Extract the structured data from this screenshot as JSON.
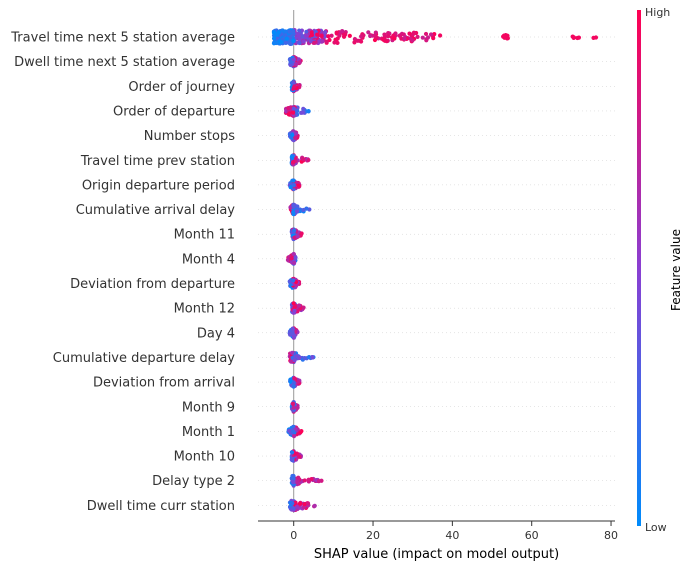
{
  "chart_data": {
    "type": "scatter",
    "title": "",
    "xlabel": "SHAP value (impact on model output)",
    "ylabel": "",
    "xlim": [
      -9,
      81
    ],
    "xticks": [
      0,
      20,
      40,
      60,
      80
    ],
    "grid": false,
    "color_scale": {
      "title": "Feature value",
      "high_label": "High",
      "low_label": "Low",
      "low_color": "#008bfb",
      "high_color": "#ff0052"
    },
    "features": [
      {
        "name": "Travel time next 5 station average",
        "x_min": -5,
        "x_max": 77,
        "low_side": "negative"
      },
      {
        "name": "Dwell time next 5 station average",
        "x_min": -1,
        "x_max": 2,
        "low_side": "negative"
      },
      {
        "name": "Order of journey",
        "x_min": -0.5,
        "x_max": 1.5,
        "low_side": "negative"
      },
      {
        "name": "Order of departure",
        "x_min": -2,
        "x_max": 4,
        "low_side": "positive"
      },
      {
        "name": "Number stops",
        "x_min": -1,
        "x_max": 1,
        "low_side": "negative"
      },
      {
        "name": "Travel time prev station",
        "x_min": -0.5,
        "x_max": 4,
        "low_side": "negative"
      },
      {
        "name": "Origin departure period",
        "x_min": -1,
        "x_max": 1.5,
        "low_side": "negative"
      },
      {
        "name": "Cumulative arrival delay",
        "x_min": -1,
        "x_max": 4,
        "low_side": "positive"
      },
      {
        "name": "Month 11",
        "x_min": -0.5,
        "x_max": 2,
        "low_side": "negative"
      },
      {
        "name": "Month 4",
        "x_min": -1.5,
        "x_max": 0.5,
        "low_side": "positive"
      },
      {
        "name": "Deviation from departure",
        "x_min": -1,
        "x_max": 1.5,
        "low_side": "negative"
      },
      {
        "name": "Month 12",
        "x_min": -0.5,
        "x_max": 2.5,
        "low_side": "negative"
      },
      {
        "name": "Day 4",
        "x_min": -1,
        "x_max": 1,
        "low_side": "negative"
      },
      {
        "name": "Cumulative departure delay",
        "x_min": -1,
        "x_max": 5,
        "low_side": "positive"
      },
      {
        "name": "Deviation from arrival",
        "x_min": -1,
        "x_max": 1.5,
        "low_side": "negative"
      },
      {
        "name": "Month 9",
        "x_min": -0.5,
        "x_max": 1,
        "low_side": "negative"
      },
      {
        "name": "Month 1",
        "x_min": -1.5,
        "x_max": 2,
        "low_side": "negative"
      },
      {
        "name": "Month 10",
        "x_min": -0.5,
        "x_max": 2,
        "low_side": "negative"
      },
      {
        "name": "Delay type 2",
        "x_min": -0.5,
        "x_max": 7,
        "low_side": "negative"
      },
      {
        "name": "Dwell time curr station",
        "x_min": -1,
        "x_max": 6,
        "low_side": "negative"
      }
    ]
  }
}
